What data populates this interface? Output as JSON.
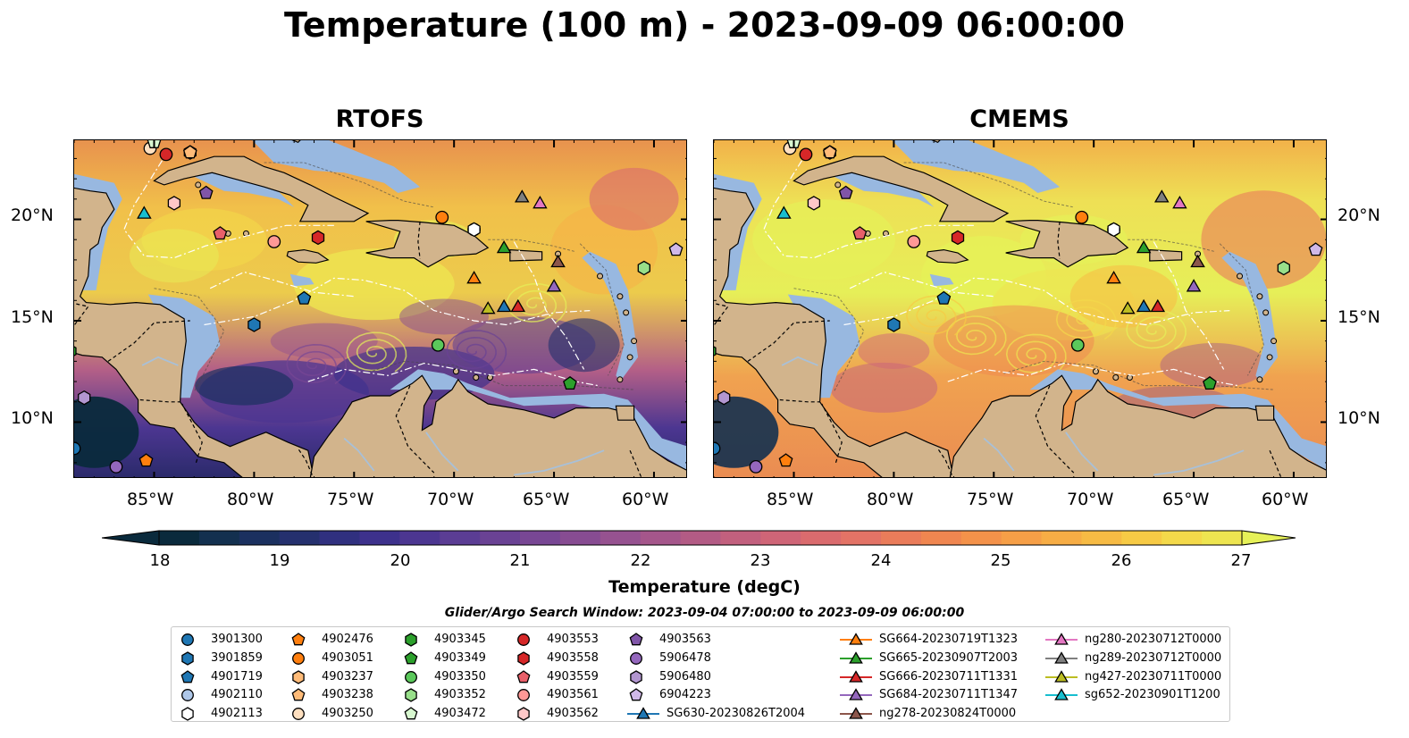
{
  "figure": {
    "title": "Temperature (100 m) - 2023-09-09 06:00:00",
    "panels": [
      {
        "title": "RTOFS",
        "warmth": 0
      },
      {
        "title": "CMEMS",
        "warmth": 1
      }
    ],
    "lon_ticks": [
      "85°W",
      "80°W",
      "75°W",
      "70°W",
      "65°W",
      "60°W"
    ],
    "lat_ticks": [
      "20°N",
      "15°N",
      "10°N"
    ],
    "lon_range": [
      -89,
      -58.3
    ],
    "lat_range": [
      7.2,
      23.9
    ],
    "colors": {
      "land": "#d2b48c",
      "shelf": "#98b8e0",
      "rivers": "#a8c0d8"
    }
  },
  "colorbar": {
    "label": "Temperature (degC)",
    "ticks": [
      "18",
      "19",
      "20",
      "21",
      "22",
      "23",
      "24",
      "25",
      "26",
      "27"
    ],
    "range": [
      18,
      27
    ],
    "colors": [
      "#0a2a3c",
      "#13304f",
      "#1b305f",
      "#25306e",
      "#30307f",
      "#3d318c",
      "#4c3691",
      "#5b3d94",
      "#6a4294",
      "#784794",
      "#874c92",
      "#965290",
      "#a5568b",
      "#b35b85",
      "#c2607e",
      "#cf6577",
      "#da6b6e",
      "#e37366",
      "#ea7c5a",
      "#f08650",
      "#f4924a",
      "#f69f47",
      "#f7ad45",
      "#f7bb44",
      "#f7ca45",
      "#f4d94a",
      "#eee550",
      "#e6f158"
    ]
  },
  "search_window": "Glider/Argo Search Window: 2023-09-04 07:00:00 to 2023-09-09 06:00:00",
  "legend": {
    "items": [
      {
        "label": "3901300",
        "marker": "circle",
        "color": "#1f77b4",
        "lon": -89.0,
        "lat": 8.7
      },
      {
        "label": "3901859",
        "marker": "hexagon",
        "color": "#1f77b4",
        "lon": -80.0,
        "lat": 14.8
      },
      {
        "label": "4901719",
        "marker": "pentagon",
        "color": "#1f77b4",
        "lon": -77.5,
        "lat": 16.1
      },
      {
        "label": "4902110",
        "marker": "circle",
        "color": "#aec7e8",
        "lon": -69.0,
        "lat": 19.5
      },
      {
        "label": "4902113",
        "marker": "hexagon",
        "color": "#ffffff",
        "lon": -69.0,
        "lat": 19.5
      },
      {
        "label": "4902476",
        "marker": "pentagon",
        "color": "#ff7f0e",
        "lon": -85.4,
        "lat": 8.1
      },
      {
        "label": "4903051",
        "marker": "circle",
        "color": "#ff7f0e",
        "lon": -70.6,
        "lat": 20.1
      },
      {
        "label": "4903237",
        "marker": "hexagon",
        "color": "#ffbb78",
        "lon": -83.2,
        "lat": 23.3
      },
      {
        "label": "4903238",
        "marker": "pentagon",
        "color": "#ffbb78",
        "lon": -83.2,
        "lat": 23.3
      },
      {
        "label": "4903250",
        "marker": "circle",
        "color": "#ffe0c0",
        "lon": -85.2,
        "lat": 23.5
      },
      {
        "label": "4903345",
        "marker": "hexagon",
        "color": "#2ca02c",
        "lon": -89.2,
        "lat": 13.5
      },
      {
        "label": "4903349",
        "marker": "pentagon",
        "color": "#2ca02c",
        "lon": -64.2,
        "lat": 11.9
      },
      {
        "label": "4903350",
        "marker": "circle",
        "color": "#5bc85b",
        "lon": -70.8,
        "lat": 13.8
      },
      {
        "label": "4903352",
        "marker": "hexagon",
        "color": "#98df8a",
        "lon": -60.5,
        "lat": 17.6
      },
      {
        "label": "4903472",
        "marker": "pentagon",
        "color": "#d8f8d0",
        "lon": -85.0,
        "lat": 23.8
      },
      {
        "label": "4903553",
        "marker": "circle",
        "color": "#d62728",
        "lon": -84.4,
        "lat": 23.2
      },
      {
        "label": "4903558",
        "marker": "hexagon",
        "color": "#d62728",
        "lon": -76.8,
        "lat": 19.1
      },
      {
        "label": "4903559",
        "marker": "pentagon",
        "color": "#e8606a",
        "lon": -81.7,
        "lat": 19.3
      },
      {
        "label": "4903561",
        "marker": "circle",
        "color": "#ff9896",
        "lon": -79.0,
        "lat": 18.9
      },
      {
        "label": "4903562",
        "marker": "hexagon",
        "color": "#ffc8c8",
        "lon": -84.0,
        "lat": 20.8
      },
      {
        "label": "4903563",
        "marker": "pentagon",
        "color": "#8055a8",
        "lon": -82.4,
        "lat": 21.3
      },
      {
        "label": "5906478",
        "marker": "circle",
        "color": "#9467bd",
        "lon": -86.9,
        "lat": 7.8
      },
      {
        "label": "5906480",
        "marker": "hexagon",
        "color": "#b296d0",
        "lon": -88.5,
        "lat": 11.2
      },
      {
        "label": "6904223",
        "marker": "pentagon",
        "color": "#d0b8e8",
        "lon": -58.9,
        "lat": 18.5
      },
      {
        "label": "SG630-20230826T2004",
        "marker": "triangle",
        "color": "#1f77b4",
        "line": true,
        "lon": -67.5,
        "lat": 15.7
      },
      {
        "label": "SG664-20230719T1323",
        "marker": "triangle",
        "color": "#ff7f0e",
        "line": true,
        "lon": -69.0,
        "lat": 17.1
      },
      {
        "label": "SG665-20230907T2003",
        "marker": "triangle",
        "color": "#2ca02c",
        "line": true,
        "lon": -67.5,
        "lat": 18.6
      },
      {
        "label": "SG666-20230711T1331",
        "marker": "triangle",
        "color": "#d62728",
        "line": true,
        "lon": -66.8,
        "lat": 15.7
      },
      {
        "label": "SG684-20230711T1347",
        "marker": "triangle",
        "color": "#9467bd",
        "line": true,
        "lon": -65.0,
        "lat": 16.7
      },
      {
        "label": "ng278-20230824T0000",
        "marker": "triangle",
        "color": "#8c564b",
        "line": true,
        "lon": -64.8,
        "lat": 17.9
      },
      {
        "label": "ng280-20230712T0000",
        "marker": "triangle",
        "color": "#e377c2",
        "line": true,
        "lon": -65.7,
        "lat": 20.8
      },
      {
        "label": "ng289-20230712T0000",
        "marker": "triangle",
        "color": "#7f7f7f",
        "line": true,
        "lon": -66.6,
        "lat": 21.1
      },
      {
        "label": "ng427-20230711T0000",
        "marker": "triangle",
        "color": "#bcbd22",
        "line": true,
        "lon": -68.3,
        "lat": 15.6
      },
      {
        "label": "sg652-20230901T1200",
        "marker": "triangle",
        "color": "#17becf",
        "line": true,
        "lon": -85.5,
        "lat": 20.3
      }
    ]
  }
}
